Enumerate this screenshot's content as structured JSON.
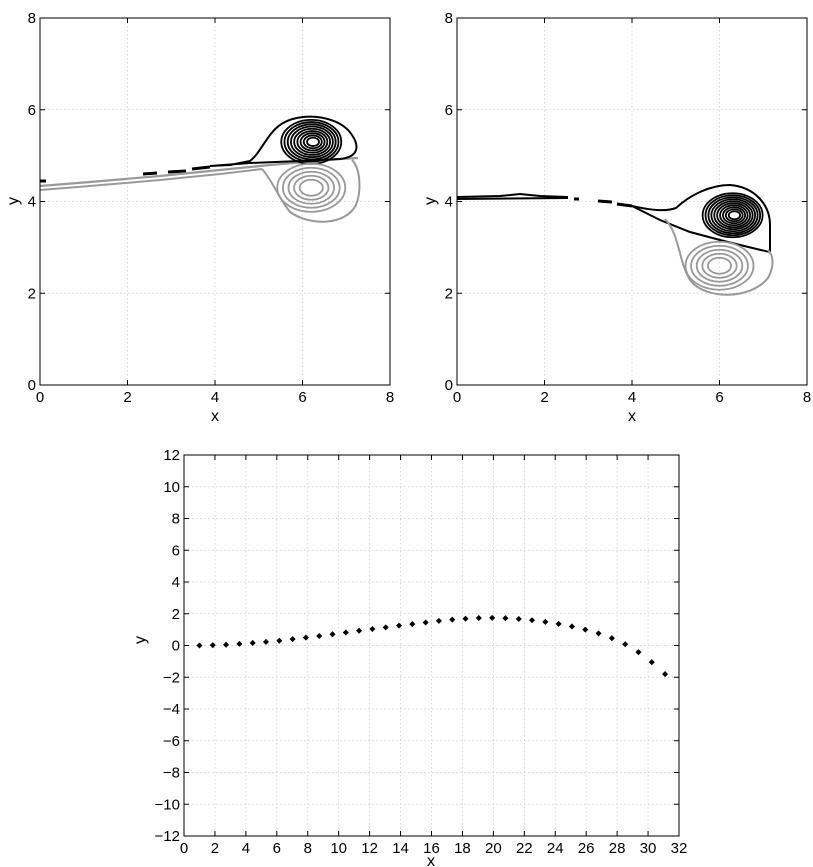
{
  "chart_data": [
    {
      "type": "contour",
      "panel": "top-left",
      "xlabel": "x",
      "ylabel": "y",
      "xlim": [
        0,
        8
      ],
      "ylim": [
        0,
        8
      ],
      "xticks": [
        "0",
        "2",
        "4",
        "6",
        "8"
      ],
      "yticks": [
        "0",
        "2",
        "4",
        "6",
        "8"
      ],
      "grid": true,
      "colors": {
        "positive": "#000000",
        "negative": "#999999"
      },
      "vortex_positive_center": [
        6.2,
        5.3
      ],
      "vortex_negative_center": [
        6.2,
        4.3
      ]
    },
    {
      "type": "contour",
      "panel": "top-right",
      "xlabel": "x",
      "ylabel": "y",
      "xlim": [
        0,
        8
      ],
      "ylim": [
        0,
        8
      ],
      "xticks": [
        "0",
        "2",
        "4",
        "6",
        "8"
      ],
      "yticks": [
        "0",
        "2",
        "4",
        "6",
        "8"
      ],
      "grid": true,
      "colors": {
        "positive": "#000000",
        "negative": "#999999"
      },
      "vortex_positive_center": [
        6.3,
        3.7
      ],
      "vortex_negative_center": [
        6.0,
        2.6
      ]
    },
    {
      "type": "scatter",
      "panel": "bottom",
      "xlabel": "x",
      "ylabel": "y",
      "xlim": [
        0,
        32
      ],
      "ylim": [
        -12,
        12
      ],
      "xticks": [
        "0",
        "2",
        "4",
        "6",
        "8",
        "10",
        "12",
        "14",
        "16",
        "18",
        "20",
        "22",
        "24",
        "26",
        "28",
        "30",
        "32"
      ],
      "yticks": [
        "−12",
        "−10",
        "−8",
        "−6",
        "−4",
        "−2",
        "0",
        "2",
        "4",
        "6",
        "8",
        "10",
        "12"
      ],
      "grid": true,
      "marker_color": "#000000",
      "points": [
        [
          1.0,
          0.0
        ],
        [
          1.86,
          0.02
        ],
        [
          2.72,
          0.05
        ],
        [
          3.58,
          0.1
        ],
        [
          4.44,
          0.16
        ],
        [
          5.3,
          0.23
        ],
        [
          6.16,
          0.3
        ],
        [
          7.02,
          0.4
        ],
        [
          7.88,
          0.5
        ],
        [
          8.74,
          0.6
        ],
        [
          9.6,
          0.71
        ],
        [
          10.46,
          0.82
        ],
        [
          11.32,
          0.93
        ],
        [
          12.18,
          1.04
        ],
        [
          13.04,
          1.14
        ],
        [
          13.9,
          1.25
        ],
        [
          14.76,
          1.35
        ],
        [
          15.62,
          1.45
        ],
        [
          16.48,
          1.55
        ],
        [
          17.34,
          1.63
        ],
        [
          18.2,
          1.69
        ],
        [
          19.06,
          1.73
        ],
        [
          19.92,
          1.74
        ],
        [
          20.78,
          1.72
        ],
        [
          21.64,
          1.67
        ],
        [
          22.5,
          1.59
        ],
        [
          23.36,
          1.49
        ],
        [
          24.22,
          1.36
        ],
        [
          25.08,
          1.2
        ],
        [
          25.94,
          1.0
        ],
        [
          26.8,
          0.76
        ],
        [
          27.66,
          0.46
        ],
        [
          28.52,
          0.08
        ],
        [
          29.38,
          -0.42
        ],
        [
          30.24,
          -1.05
        ],
        [
          31.1,
          -1.8
        ]
      ]
    }
  ]
}
